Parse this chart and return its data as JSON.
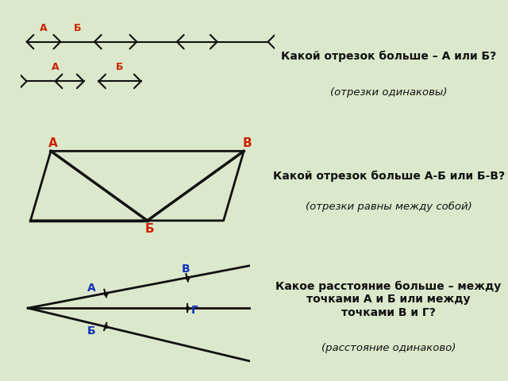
{
  "bg_color": "#dce8cc",
  "panel1_bg": "#ffffff",
  "panel2_bg": "#c8dff0",
  "panel3_bg": "#c8dff0",
  "right_bg": "#dce8cc",
  "text_dark": "#111111",
  "text_red": "#cc2200",
  "text_blue": "#1133bb",
  "title1": "Какой отрезок больше – А или Б?",
  "sub1": "(отрезки одинаковы)",
  "title2": "Какой отрезок больше А-Б или Б-В?",
  "sub2": "(отрезки равны между собой)",
  "title3": "Какое расстояние больше – между\nточками А и Б или между\nточками В и Г?",
  "sub3": "(расстояние одинаково)"
}
